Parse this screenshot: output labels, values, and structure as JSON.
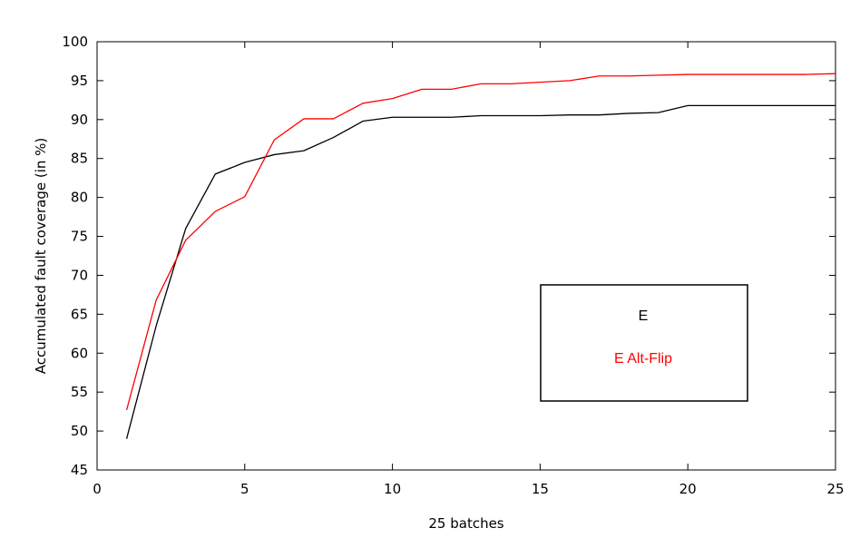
{
  "chart_data": {
    "type": "line",
    "title": "",
    "xlabel": "25 batches",
    "ylabel": "Accumulated fault coverage (in %)",
    "xlim": [
      0,
      25
    ],
    "ylim": [
      45,
      100
    ],
    "xticks": [
      0,
      5,
      10,
      15,
      20,
      25
    ],
    "yticks": [
      45,
      50,
      55,
      60,
      65,
      70,
      75,
      80,
      85,
      90,
      95,
      100
    ],
    "grid": false,
    "legend_placement": "center-right",
    "x": [
      1,
      2,
      3,
      4,
      5,
      6,
      7,
      8,
      9,
      10,
      11,
      12,
      13,
      14,
      15,
      16,
      17,
      18,
      19,
      20,
      21,
      22,
      23,
      24,
      25
    ],
    "series": [
      {
        "name": "E",
        "color": "#000000",
        "values": [
          49.0,
          63.5,
          76.0,
          83.0,
          84.5,
          85.5,
          86.0,
          87.7,
          89.8,
          90.3,
          90.3,
          90.3,
          90.5,
          90.5,
          90.5,
          90.6,
          90.6,
          90.8,
          90.9,
          91.8,
          91.8,
          91.8,
          91.8,
          91.8,
          91.8
        ]
      },
      {
        "name": "E Alt-Flip",
        "color": "#ff0000",
        "values": [
          52.7,
          66.8,
          74.5,
          78.2,
          80.1,
          87.4,
          90.1,
          90.1,
          92.1,
          92.7,
          93.9,
          93.9,
          94.6,
          94.6,
          94.8,
          95.0,
          95.6,
          95.6,
          95.7,
          95.8,
          95.8,
          95.8,
          95.8,
          95.8,
          95.9
        ]
      }
    ]
  }
}
